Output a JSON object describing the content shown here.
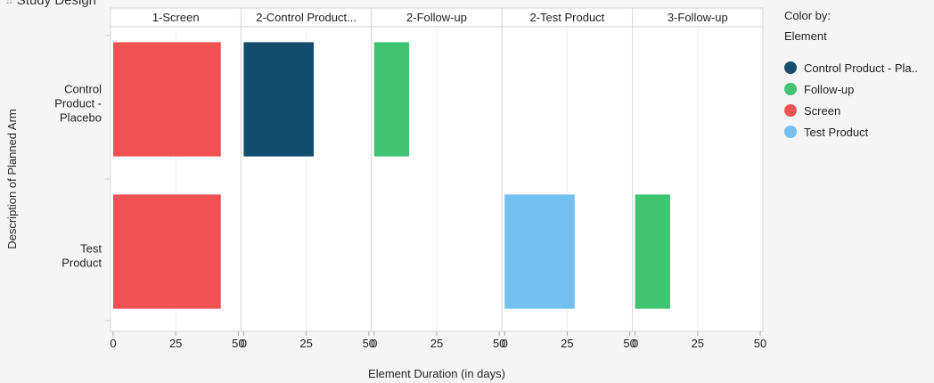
{
  "title": "Study Design",
  "legend": {
    "label1": "Color by:",
    "label2": "Element",
    "items": [
      {
        "name": "Control Product - Pla..",
        "color": "#134e6f"
      },
      {
        "name": "Follow-up",
        "color": "#40c373"
      },
      {
        "name": "Screen",
        "color": "#f05252"
      },
      {
        "name": "Test Product",
        "color": "#72bff0"
      }
    ]
  },
  "chart_data": {
    "type": "bar",
    "orientation": "horizontal",
    "xlabel": "Element Duration (in days)",
    "ylabel": "Description of Planned Arm",
    "panels": [
      "1-Screen",
      "2-Control Product...",
      "2-Follow-up",
      "2-Test Product",
      "3-Follow-up"
    ],
    "xlim": [
      0,
      50
    ],
    "xticks": [
      0,
      25,
      50
    ],
    "categories": [
      {
        "label_lines": [
          "Control",
          "Product -",
          "Placebo"
        ]
      },
      {
        "label_lines": [
          "Test",
          "Product"
        ]
      }
    ],
    "bars": [
      {
        "category": 0,
        "panel": 0,
        "value": 43,
        "element": "Screen"
      },
      {
        "category": 0,
        "panel": 1,
        "value": 28,
        "element": "Control Product - Placebo"
      },
      {
        "category": 0,
        "panel": 2,
        "value": 14,
        "element": "Follow-up"
      },
      {
        "category": 1,
        "panel": 0,
        "value": 43,
        "element": "Screen"
      },
      {
        "category": 1,
        "panel": 3,
        "value": 28,
        "element": "Test Product"
      },
      {
        "category": 1,
        "panel": 4,
        "value": 14,
        "element": "Follow-up"
      }
    ],
    "colors": {
      "Screen": "#f05252",
      "Control Product - Placebo": "#134e6f",
      "Follow-up": "#40c373",
      "Test Product": "#72bff0"
    },
    "grid": true,
    "legend_position": "right"
  }
}
